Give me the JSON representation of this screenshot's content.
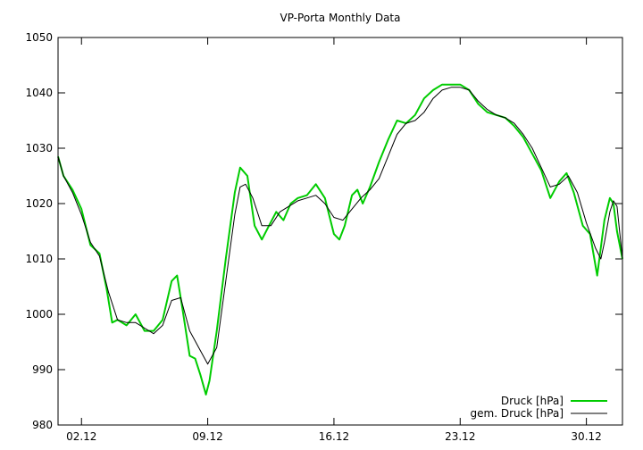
{
  "chart_data": {
    "type": "line",
    "title": "VP-Porta Monthly Data",
    "xlabel": "",
    "ylabel": "",
    "x_unit": "day of December",
    "xlim": [
      0.7,
      32.0
    ],
    "ylim": [
      980,
      1050
    ],
    "y_ticks": [
      980,
      990,
      1000,
      1010,
      1020,
      1030,
      1040,
      1050
    ],
    "x_ticks": [
      {
        "x": 2,
        "label": "02.12"
      },
      {
        "x": 9,
        "label": "09.12"
      },
      {
        "x": 16,
        "label": "16.12"
      },
      {
        "x": 23,
        "label": "23.12"
      },
      {
        "x": 30,
        "label": "30.12"
      }
    ],
    "grid": false,
    "legend_position": "bottom-right",
    "series": [
      {
        "name": "Druck [hPa]",
        "color": "#00cc00",
        "x": [
          0.7,
          1.0,
          1.5,
          2.0,
          2.5,
          3.0,
          3.4,
          3.7,
          4.0,
          4.5,
          5.0,
          5.5,
          6.0,
          6.5,
          7.0,
          7.3,
          7.6,
          8.0,
          8.3,
          8.6,
          8.9,
          9.1,
          9.5,
          10.0,
          10.5,
          10.8,
          11.2,
          11.6,
          12.0,
          12.4,
          12.8,
          13.2,
          13.6,
          14.0,
          14.5,
          15.0,
          15.5,
          16.0,
          16.3,
          16.6,
          17.0,
          17.3,
          17.6,
          18.0,
          18.5,
          19.0,
          19.5,
          20.0,
          20.5,
          21.0,
          21.5,
          22.0,
          22.5,
          23.0,
          23.5,
          24.0,
          24.5,
          25.0,
          25.5,
          26.0,
          26.5,
          27.0,
          27.5,
          28.0,
          28.5,
          28.9,
          29.3,
          29.8,
          30.2,
          30.6,
          31.0,
          31.3,
          31.5,
          31.7,
          32.0
        ],
        "values": [
          1028.5,
          1025,
          1022.5,
          1019,
          1012.5,
          1011,
          1004.5,
          998.5,
          999,
          998,
          1000,
          997,
          997,
          999,
          1006,
          1007,
          1001,
          992.5,
          992,
          989,
          985.5,
          988,
          997,
          1010,
          1022,
          1026.5,
          1025,
          1016,
          1013.5,
          1016,
          1018.5,
          1017,
          1020,
          1021,
          1021.5,
          1023.5,
          1021,
          1014.5,
          1013.5,
          1016,
          1021.5,
          1022.5,
          1020,
          1023,
          1027.5,
          1031.5,
          1035,
          1034.5,
          1036,
          1039,
          1040.5,
          1041.5,
          1041.5,
          1041.5,
          1040.5,
          1038,
          1036.5,
          1036,
          1035.5,
          1034,
          1032,
          1029,
          1026,
          1021,
          1024,
          1025.5,
          1022,
          1016,
          1014.5,
          1007,
          1017,
          1021,
          1020,
          1015,
          1010
        ]
      },
      {
        "name": "gem. Druck [hPa]",
        "color": "#000000",
        "x": [
          0.7,
          1.0,
          1.5,
          2.0,
          2.5,
          3.0,
          3.5,
          4.0,
          4.5,
          5.0,
          5.5,
          6.0,
          6.5,
          7.0,
          7.5,
          8.0,
          8.5,
          9.0,
          9.5,
          10.0,
          10.5,
          10.8,
          11.1,
          11.5,
          12.0,
          12.5,
          13.0,
          13.5,
          14.0,
          14.5,
          15.0,
          15.5,
          16.0,
          16.5,
          17.0,
          17.5,
          18.0,
          18.5,
          19.0,
          19.5,
          20.0,
          20.5,
          21.0,
          21.5,
          22.0,
          22.5,
          23.0,
          23.5,
          24.0,
          24.5,
          25.0,
          25.5,
          26.0,
          26.5,
          27.0,
          27.5,
          28.0,
          28.5,
          29.0,
          29.5,
          30.0,
          30.5,
          30.8,
          31.0,
          31.3,
          31.5,
          31.7,
          32.0
        ],
        "values": [
          1028.5,
          1025,
          1022,
          1018,
          1013,
          1010.5,
          1004,
          999,
          998.5,
          998.5,
          997.5,
          996.5,
          998,
          1002.5,
          1003,
          997,
          994,
          991,
          994,
          1006,
          1018,
          1023,
          1023.5,
          1021,
          1016,
          1016,
          1018.5,
          1019.5,
          1020.5,
          1021,
          1021.5,
          1020,
          1017.5,
          1017,
          1019,
          1021,
          1022.5,
          1024.5,
          1028.5,
          1032.5,
          1034.5,
          1035,
          1036.5,
          1039,
          1040.5,
          1041,
          1041,
          1040.5,
          1038.5,
          1037,
          1036,
          1035.5,
          1034.5,
          1032.5,
          1030,
          1026.5,
          1023,
          1023.5,
          1025,
          1022,
          1016.5,
          1012,
          1010,
          1013,
          1018.5,
          1020.5,
          1019.5,
          1010
        ]
      }
    ]
  }
}
